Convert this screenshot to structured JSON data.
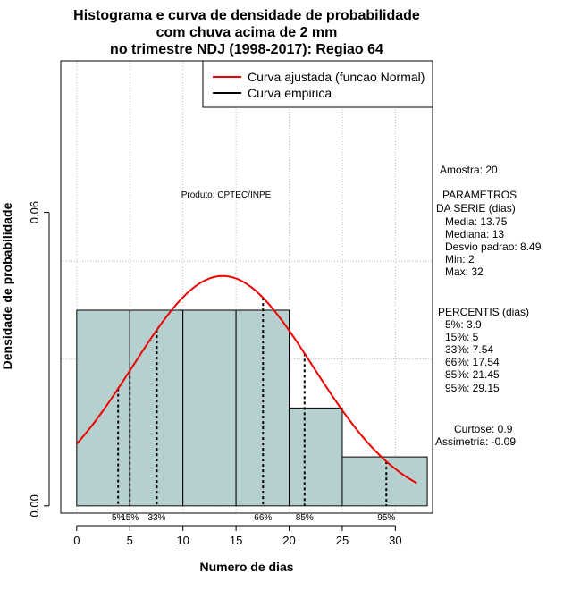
{
  "chart_data": {
    "type": "bar",
    "title_lines": [
      "Histograma e curva de densidade de probabilidade",
      "com chuva acima de 2 mm",
      "no trimestre NDJ (1998-2017): Regiao 64"
    ],
    "xlabel": "Numero de dias",
    "ylabel": "Densidade de probabilidade",
    "xlim": [
      -1.5,
      33.5
    ],
    "ylim": [
      -0.0015,
      0.091
    ],
    "x_ticks": [
      "0",
      "5",
      "10",
      "15",
      "20",
      "25",
      "30"
    ],
    "y_ticks": [
      "0.00",
      "0.06"
    ],
    "grid": true,
    "bins": [
      {
        "from": 0,
        "to": 5,
        "density": 0.04
      },
      {
        "from": 5,
        "to": 10,
        "density": 0.04
      },
      {
        "from": 10,
        "to": 15,
        "density": 0.04
      },
      {
        "from": 15,
        "to": 20,
        "density": 0.04
      },
      {
        "from": 20,
        "to": 25,
        "density": 0.02
      },
      {
        "from": 25,
        "to": 33,
        "density": 0.01
      }
    ],
    "bar_color": "#b6cfcf",
    "curve": {
      "name": "Curva ajustada (funcao Normal)",
      "mean": 13.75,
      "sd": 8.49,
      "x_from": 0,
      "x_to": 32,
      "color": "#ee0000"
    },
    "empirical_name": "Curva empirica",
    "legend_position": "top-right",
    "percentile_lines": [
      {
        "x": 3.9,
        "label": "5%"
      },
      {
        "x": 5,
        "label": "15%"
      },
      {
        "x": 7.54,
        "label": "33%"
      },
      {
        "x": 17.54,
        "label": "66%"
      },
      {
        "x": 21.45,
        "label": "85%"
      },
      {
        "x": 29.15,
        "label": "95%"
      }
    ],
    "annotation": "Produto: CPTEC/INPE",
    "side_text": {
      "amostra": "Amostra: 20",
      "parametros_title_1": "PARAMETROS",
      "parametros_title_2": "DA SERIE (dias)",
      "media": "Media: 13.75",
      "mediana": "Mediana: 13",
      "desvio": "Desvio padrao: 8.49",
      "min": "Min: 2",
      "max": "Max: 32",
      "percentis_title": "PERCENTIS (dias)",
      "p5": "5%: 3.9",
      "p15": "15%: 5",
      "p33": "33%: 7.54",
      "p66": "66%: 17.54",
      "p85": "85%: 21.45",
      "p95": "95%: 29.15",
      "curtose": "Curtose: 0.9",
      "assimetria": "Assimetria: -0.09"
    }
  }
}
